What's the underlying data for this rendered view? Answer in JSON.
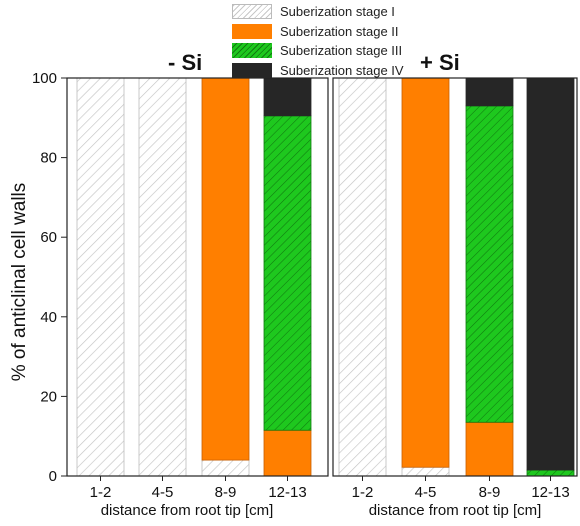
{
  "chart_data": {
    "type": "bar",
    "stacked": true,
    "ylabel": "% of anticlinal cell walls",
    "ylim": [
      0,
      100
    ],
    "yticks": [
      "0",
      "20",
      "40",
      "60",
      "80",
      "100"
    ],
    "grid": false,
    "legend": {
      "placement": "top-right",
      "entries": [
        {
          "label": "Suberization stage I",
          "color": "#ffffff",
          "pattern": "hatch-gray"
        },
        {
          "label": "Suberization stage II",
          "color": "#ff7f00",
          "pattern": "solid"
        },
        {
          "label": "Suberization stage III",
          "color": "#1ec81e",
          "pattern": "hatch-dark"
        },
        {
          "label": "Suberization stage IV",
          "color": "#262626",
          "pattern": "solid"
        }
      ]
    },
    "panels": [
      {
        "title": "- Si",
        "xlabel": "distance from root tip [cm]",
        "categories": [
          "1-2",
          "4-5",
          "8-9",
          "12-13"
        ],
        "series": [
          {
            "name": "Suberization stage I",
            "values": [
              100,
              100,
              4,
              0
            ]
          },
          {
            "name": "Suberization stage II",
            "values": [
              0,
              0,
              96,
              11.5
            ]
          },
          {
            "name": "Suberization stage III",
            "values": [
              0,
              0,
              0,
              79
            ]
          },
          {
            "name": "Suberization stage IV",
            "values": [
              0,
              0,
              0,
              9.5
            ]
          }
        ]
      },
      {
        "title": "+ Si",
        "xlabel": "distance from root tip [cm]",
        "categories": [
          "1-2",
          "4-5",
          "8-9",
          "12-13"
        ],
        "series": [
          {
            "name": "Suberization stage I",
            "values": [
              100,
              2.2,
              0,
              0
            ]
          },
          {
            "name": "Suberization stage II",
            "values": [
              0,
              97.8,
              13.5,
              0
            ]
          },
          {
            "name": "Suberization stage III",
            "values": [
              0,
              0,
              79.5,
              1.5
            ]
          },
          {
            "name": "Suberization stage IV",
            "values": [
              0,
              0,
              7,
              98.5
            ]
          }
        ]
      }
    ]
  }
}
